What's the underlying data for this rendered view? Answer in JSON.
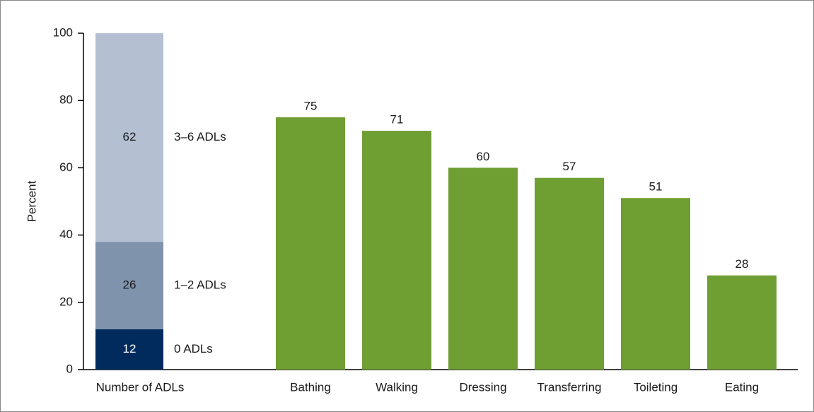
{
  "chart_data": {
    "type": "bar",
    "ylabel": "Percent",
    "ylim": [
      0,
      100
    ],
    "yticks": [
      0,
      20,
      40,
      60,
      80,
      100
    ],
    "stack": {
      "category": "Number of ADLs",
      "segments": [
        {
          "name": "0 ADLs",
          "value": 12,
          "color": "#002b5c"
        },
        {
          "name": "1–2 ADLs",
          "value": 26,
          "color": "#8093ad"
        },
        {
          "name": "3–6 ADLs",
          "value": 62,
          "color": "#b4c0d2"
        }
      ]
    },
    "categories": [
      "Bathing",
      "Walking",
      "Dressing",
      "Transferring",
      "Toileting",
      "Eating"
    ],
    "values": [
      75,
      71,
      60,
      57,
      51,
      28
    ],
    "color": "#6f9e33"
  }
}
